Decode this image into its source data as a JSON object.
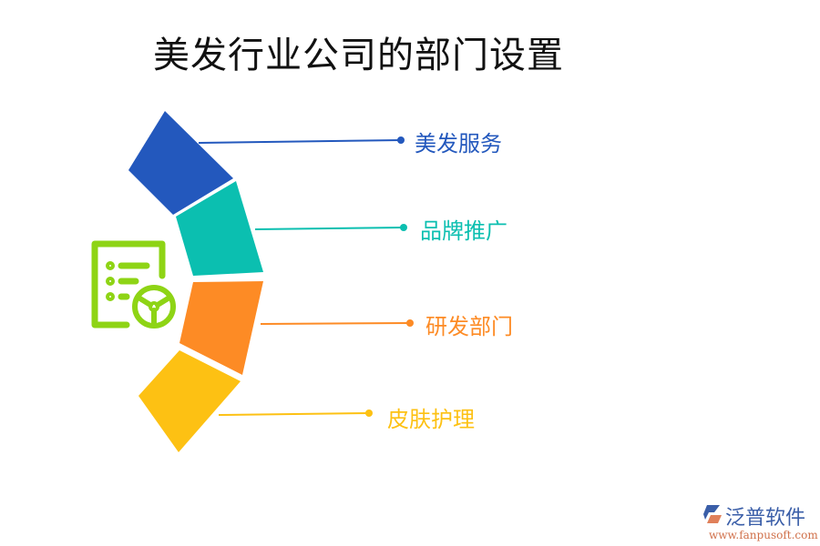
{
  "title": "美发行业公司的部门设置",
  "departments": [
    {
      "label": "美发服务",
      "color": "#2358bd"
    },
    {
      "label": "品牌推广",
      "color": "#0bbfb0"
    },
    {
      "label": "研发部门",
      "color": "#fd8b25"
    },
    {
      "label": "皮肤护理",
      "color": "#fdc113"
    }
  ],
  "icon": {
    "name": "document-steering-wheel-icon",
    "color": "#8ed415"
  },
  "logo": {
    "name": "泛普软件",
    "url": "www.fanpusoft.com"
  }
}
